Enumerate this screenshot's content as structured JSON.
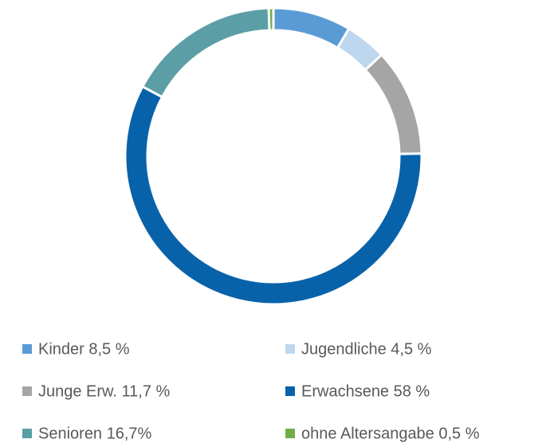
{
  "chart_data": {
    "type": "donut",
    "categories": [
      "Kinder 8,5 %",
      "Jugendliche 4,5 %",
      "Junge Erw. 11,7 %",
      "Erwachsene 58 %",
      "Senioren 16,7%",
      "ohne Altersangabe 0,5 %"
    ],
    "values": [
      8.5,
      4.5,
      11.7,
      58,
      16.7,
      0.5
    ],
    "colors": [
      "#5b9bd5",
      "#bdd7ee",
      "#a5a5a5",
      "#0862aa",
      "#5b9ea6",
      "#70ad47"
    ]
  }
}
